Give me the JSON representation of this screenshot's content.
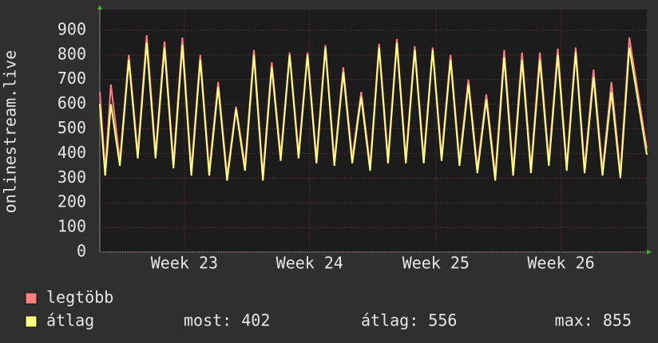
{
  "chart_data": {
    "type": "line",
    "y_label": "onlinestream.live",
    "x": [
      0,
      0.3,
      0.62,
      1.12,
      1.62,
      2.12,
      2.62,
      3.12,
      3.62,
      4.12,
      4.62,
      5.12,
      5.62,
      6.12,
      6.62,
      7.12,
      7.62,
      8.12,
      8.62,
      9.12,
      9.62,
      10.12,
      10.62,
      11.12,
      11.62,
      12.12,
      12.62,
      13.12,
      13.62,
      14.12,
      14.62,
      15.12,
      15.62,
      16.12,
      16.62,
      17.12,
      17.62,
      18.12,
      18.62,
      19.12,
      19.62,
      20.12,
      20.62,
      21.12,
      21.62,
      22.12,
      22.62,
      23.12,
      23.62,
      24.12,
      24.62,
      25.12,
      25.62,
      26.12,
      26.62,
      27.12,
      27.62,
      28.12,
      28.62,
      29.12,
      29.62,
      30.6
    ],
    "series": [
      {
        "name": "legtöbb",
        "color": "#ff7f7f",
        "values": [
          650,
          330,
          680,
          370,
          800,
          400,
          880,
          400,
          855,
          360,
          870,
          330,
          800,
          330,
          690,
          310,
          590,
          350,
          820,
          310,
          770,
          390,
          810,
          400,
          810,
          380,
          840,
          370,
          750,
          380,
          650,
          350,
          845,
          380,
          865,
          380,
          835,
          380,
          830,
          390,
          800,
          370,
          700,
          340,
          640,
          310,
          820,
          330,
          810,
          340,
          810,
          370,
          825,
          350,
          830,
          340,
          740,
          330,
          690,
          320,
          870,
          420
        ]
      },
      {
        "name": "átlag",
        "color": "#ffff80",
        "values": [
          600,
          310,
          600,
          350,
          780,
          380,
          850,
          380,
          830,
          340,
          840,
          310,
          780,
          310,
          670,
          290,
          580,
          330,
          800,
          290,
          750,
          370,
          800,
          380,
          800,
          360,
          830,
          350,
          730,
          360,
          630,
          330,
          830,
          360,
          850,
          360,
          820,
          360,
          820,
          370,
          780,
          350,
          680,
          320,
          620,
          290,
          790,
          310,
          780,
          320,
          780,
          350,
          800,
          330,
          810,
          320,
          710,
          310,
          650,
          300,
          830,
          395
        ]
      }
    ],
    "stats": [
      "most: 402",
      "átlag: 556",
      "max: 855"
    ],
    "xlim": [
      0,
      30.6
    ],
    "xticks": [
      {
        "value": 4.73,
        "label": "Week 23"
      },
      {
        "value": 11.74,
        "label": "Week 24"
      },
      {
        "value": 18.8,
        "label": "Week 25"
      },
      {
        "value": 25.8,
        "label": "Week 26"
      }
    ],
    "ylim": [
      0,
      984
    ],
    "yticks": [
      0,
      100,
      200,
      300,
      400,
      500,
      600,
      700,
      800,
      900
    ],
    "grid": true
  }
}
